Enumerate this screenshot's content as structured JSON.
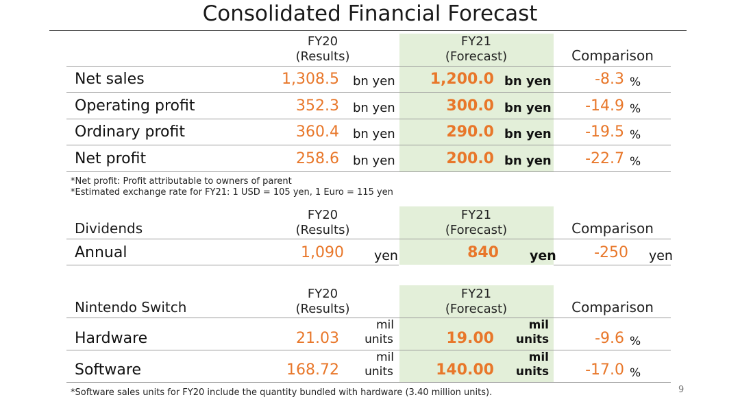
{
  "title": "Consolidated Financial Forecast",
  "colors": {
    "accent_orange": "#e8772a",
    "forecast_band": "#e3efd9",
    "text": "#1a1a1a"
  },
  "forecast": {
    "header": {
      "fy20_line1": "FY20",
      "fy20_line2": "(Results)",
      "fy21_line1": "FY21",
      "fy21_line2": "(Forecast)",
      "comparison": "Comparison"
    },
    "rows": [
      {
        "label": "Net sales",
        "fy20": "1,308.5",
        "fy20_unit": "bn yen",
        "fy21": "1,200.0",
        "fy21_unit": "bn yen",
        "comp": "-8.3",
        "comp_unit": "%"
      },
      {
        "label": "Operating profit",
        "fy20": "352.3",
        "fy20_unit": "bn yen",
        "fy21": "300.0",
        "fy21_unit": "bn yen",
        "comp": "-14.9",
        "comp_unit": "%"
      },
      {
        "label": "Ordinary profit",
        "fy20": "360.4",
        "fy20_unit": "bn yen",
        "fy21": "290.0",
        "fy21_unit": "bn yen",
        "comp": "-19.5",
        "comp_unit": "%"
      },
      {
        "label": "Net profit",
        "fy20": "258.6",
        "fy20_unit": "bn yen",
        "fy21": "200.0",
        "fy21_unit": "bn yen",
        "comp": "-22.7",
        "comp_unit": "%"
      }
    ],
    "notes": [
      "*Net profit: Profit attributable to owners of parent",
      "*Estimated exchange rate for FY21: 1 USD = 105 yen, 1 Euro = 115 yen"
    ]
  },
  "dividends": {
    "section_label": "Dividends",
    "header": {
      "fy20_line1": "FY20",
      "fy20_line2": "(Results)",
      "fy21_line1": "FY21",
      "fy21_line2": "(Forecast)",
      "comparison": "Comparison"
    },
    "row": {
      "label": "Annual",
      "fy20": "1,090",
      "fy20_unit": "yen",
      "fy21": "840",
      "fy21_unit": "yen",
      "comp": "-250",
      "comp_unit": "yen"
    }
  },
  "switch": {
    "section_label": "Nintendo Switch",
    "header": {
      "fy20_line1": "FY20",
      "fy20_line2": "(Results)",
      "fy21_line1": "FY21",
      "fy21_line2": "(Forecast)",
      "comparison": "Comparison"
    },
    "rows": [
      {
        "label": "Hardware",
        "fy20": "21.03",
        "fy20_unit1": "mil",
        "fy20_unit2": "units",
        "fy21": "19.00",
        "fy21_unit1": "mil",
        "fy21_unit2": "units",
        "comp": "-9.6",
        "comp_unit": "%"
      },
      {
        "label": "Software",
        "fy20": "168.72",
        "fy20_unit1": "mil",
        "fy20_unit2": "units",
        "fy21": "140.00",
        "fy21_unit1": "mil",
        "fy21_unit2": "units",
        "comp": "-17.0",
        "comp_unit": "%"
      }
    ],
    "note": "*Software sales units for FY20 include the quantity bundled with hardware (3.40 million units)."
  },
  "page_number": "9"
}
